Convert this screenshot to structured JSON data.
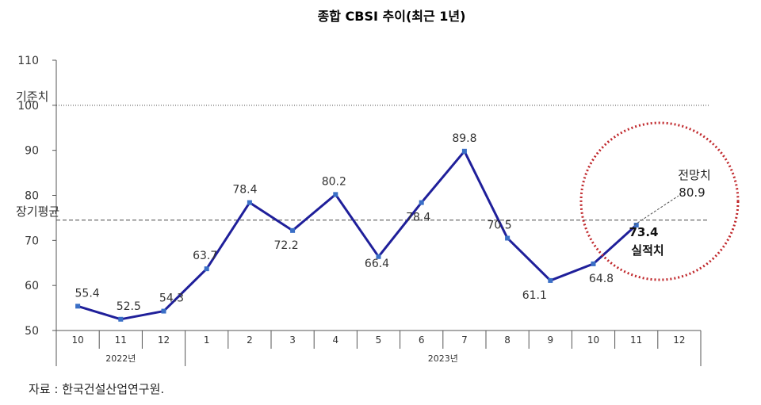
{
  "chart_data": {
    "type": "line",
    "title": "종합 CBSI 추이(최근 1년)",
    "xlabel": "",
    "ylabel": "",
    "ylim": [
      50,
      110
    ],
    "yticks": [
      "110",
      "100",
      "90",
      "80",
      "70",
      "60",
      "50"
    ],
    "categories": [
      "10",
      "11",
      "12",
      "1",
      "2",
      "3",
      "4",
      "5",
      "6",
      "7",
      "8",
      "9",
      "10",
      "11",
      "12"
    ],
    "year_groups": [
      {
        "label": "2022년",
        "start": 0,
        "end": 2
      },
      {
        "label": "2023년",
        "start": 3,
        "end": 14
      }
    ],
    "series": [
      {
        "values": [
          55.4,
          52.5,
          54.3,
          63.7,
          78.4,
          72.2,
          80.2,
          66.4,
          78.4,
          89.8,
          70.5,
          61.1,
          64.8,
          73.4,
          null
        ],
        "labels": [
          "55.4",
          "52.5",
          "54.3",
          "63.7",
          "78.4",
          "72.2",
          "80.2",
          "66.4",
          "78.4",
          "89.8",
          "70.5",
          "61.1",
          "64.8",
          "73.4",
          ""
        ],
        "color": "#1f1f9a"
      }
    ],
    "reference_lines": [
      {
        "label": "기준치",
        "value": 100,
        "style": "dotted"
      },
      {
        "label": "장기평균",
        "value": 74.5,
        "style": "dashed"
      }
    ],
    "annotations": {
      "forecast_label": "전망치",
      "forecast_value": "80.9",
      "actual_label": "실적치",
      "actual_value": "73.4"
    },
    "grid": false,
    "legend": "none"
  },
  "source": "자료 : 한국건설산업연구원."
}
